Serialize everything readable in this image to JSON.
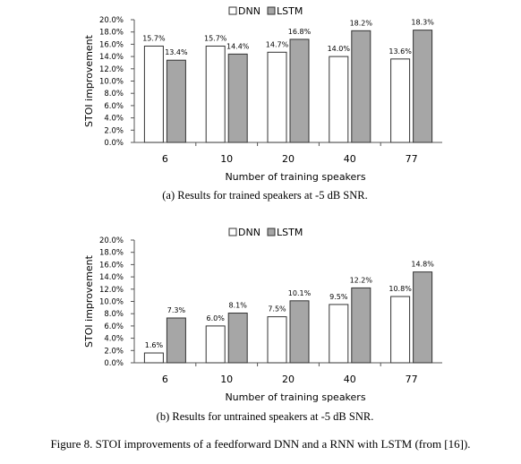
{
  "figure_caption": "Figure 8.  STOI improvements of a feedforward DNN and a RNN with LSTM (from [16]).",
  "colors": {
    "dnn_fill": "#ffffff",
    "lstm_fill": "#a6a6a6",
    "bar_stroke": "#333333",
    "axis": "#555555"
  },
  "chart_data": [
    {
      "type": "bar",
      "caption": "(a) Results for trained speakers at -5 dB SNR.",
      "xlabel": "Number of training speakers",
      "ylabel": "STOI improvement",
      "categories": [
        "6",
        "10",
        "20",
        "40",
        "77"
      ],
      "ylim": [
        0,
        20
      ],
      "ytick_labels": [
        "0.0%",
        "2.0%",
        "4.0%",
        "6.0%",
        "8.0%",
        "10.0%",
        "12.0%",
        "14.0%",
        "16.0%",
        "18.0%",
        "20.0%"
      ],
      "legend": "top-center",
      "grid": false,
      "series": [
        {
          "name": "DNN",
          "values": [
            15.7,
            15.7,
            14.7,
            14.0,
            13.6
          ],
          "labels": [
            "15.7%",
            "15.7%",
            "14.7%",
            "14.0%",
            "13.6%"
          ]
        },
        {
          "name": "LSTM",
          "values": [
            13.4,
            14.4,
            16.8,
            18.2,
            18.3
          ],
          "labels": [
            "13.4%",
            "14.4%",
            "16.8%",
            "18.2%",
            "18.3%"
          ]
        }
      ]
    },
    {
      "type": "bar",
      "caption": "(b) Results for untrained speakers at -5 dB SNR.",
      "xlabel": "Number of training speakers",
      "ylabel": "STOI improvement",
      "categories": [
        "6",
        "10",
        "20",
        "40",
        "77"
      ],
      "ylim": [
        0,
        20
      ],
      "ytick_labels": [
        "0.0%",
        "2.0%",
        "4.0%",
        "6.0%",
        "8.0%",
        "10.0%",
        "12.0%",
        "14.0%",
        "16.0%",
        "18.0%",
        "20.0%"
      ],
      "legend": "top-center",
      "grid": false,
      "series": [
        {
          "name": "DNN",
          "values": [
            1.6,
            6.0,
            7.5,
            9.5,
            10.8
          ],
          "labels": [
            "1.6%",
            "6.0%",
            "7.5%",
            "9.5%",
            "10.8%"
          ]
        },
        {
          "name": "LSTM",
          "values": [
            7.3,
            8.1,
            10.1,
            12.2,
            14.8
          ],
          "labels": [
            "7.3%",
            "8.1%",
            "10.1%",
            "12.2%",
            "14.8%"
          ]
        }
      ]
    }
  ]
}
